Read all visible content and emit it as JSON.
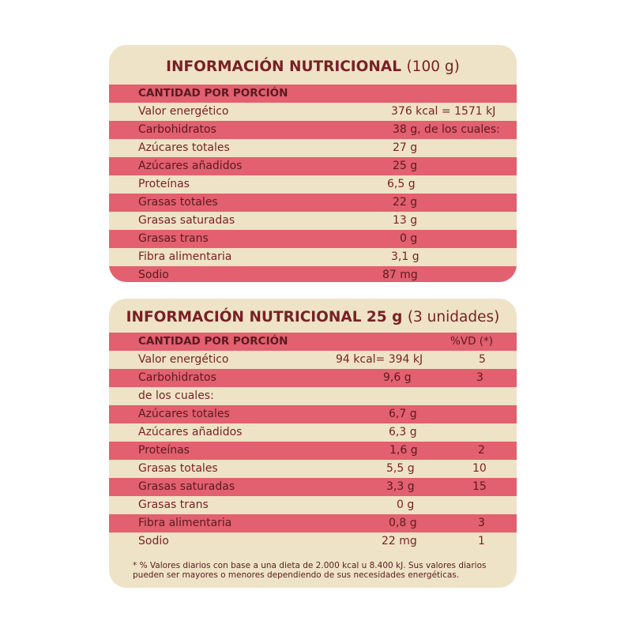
{
  "table1": {
    "title_bold": "INFORMACIÓN NUTRICIONAL",
    "title_rest": "(100 g)",
    "header": "CANTIDAD POR PORCIÓN",
    "rows": [
      {
        "label": "Valor energético",
        "value": "376 kcal = 1571 kJ"
      },
      {
        "label": "Carbohidratos",
        "value": "38 g, de los cuales:"
      },
      {
        "label": "Azúcares totales",
        "value": "27 g"
      },
      {
        "label": "Azúcares añadidos",
        "value": "25 g"
      },
      {
        "label": "Proteínas",
        "value": "6,5 g"
      },
      {
        "label": "Grasas totales",
        "value": "22 g"
      },
      {
        "label": "Grasas saturadas",
        "value": "13 g"
      },
      {
        "label": "Grasas trans",
        "value": "0 g"
      },
      {
        "label": "Fibra alimentaria",
        "value": "3,1 g"
      },
      {
        "label": "Sodio",
        "value": "87 mg"
      }
    ]
  },
  "table2": {
    "title_bold": "INFORMACIÓN NUTRICIONAL  25 g",
    "title_rest": "(3 unidades)",
    "header": "CANTIDAD POR PORCIÓN",
    "vd_header": "%VD (*)",
    "rows": [
      {
        "label": "Valor energético",
        "value": "94 kcal= 394 kJ",
        "vd": "5"
      },
      {
        "label": "Carbohidratos",
        "value": "9,6 g",
        "vd": "3"
      },
      {
        "label": "de los cuales:",
        "value": "",
        "vd": ""
      },
      {
        "label": "Azúcares totales",
        "value": "6,7 g",
        "vd": ""
      },
      {
        "label": "Azúcares añadidos",
        "value": "6,3 g",
        "vd": ""
      },
      {
        "label": "Proteínas",
        "value": "1,6 g",
        "vd": "2"
      },
      {
        "label": "Grasas totales",
        "value": "5,5 g",
        "vd": "10"
      },
      {
        "label": "Grasas saturadas",
        "value": "3,3 g",
        "vd": "15"
      },
      {
        "label": "Grasas trans",
        "value": "0 g",
        "vd": ""
      },
      {
        "label": "Fibra alimentaria",
        "value": "0,8 g",
        "vd": "3"
      },
      {
        "label": "Sodio",
        "value": "22 mg",
        "vd": "1"
      }
    ],
    "footnote_line1": "* % Valores diarios con base a una dieta de 2.000 kcal u 8.400 kJ. Sus valores diarios",
    "footnote_line2": "pueden ser mayores o menores dependiendo de sus necesidades energéticas."
  }
}
